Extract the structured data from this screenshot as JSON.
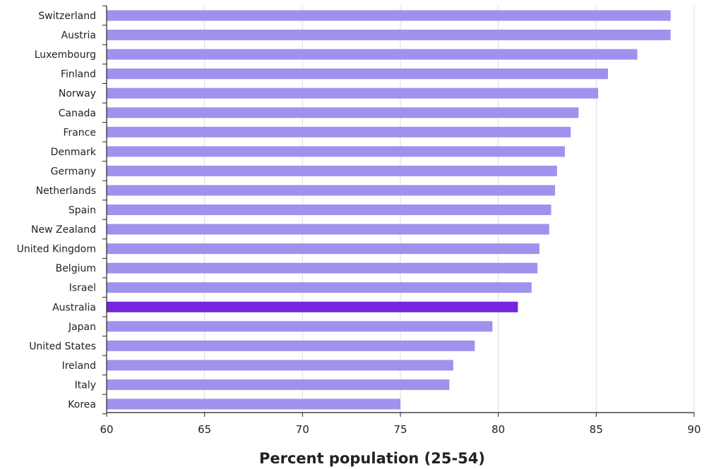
{
  "chart_data": {
    "type": "bar",
    "orientation": "horizontal",
    "xlabel": "Percent population (25-54)",
    "ylabel": "",
    "title": "",
    "xlim": [
      60,
      90
    ],
    "xticks": [
      "60",
      "65",
      "70",
      "75",
      "80",
      "85",
      "90"
    ],
    "grid": "vertical",
    "colors": {
      "bar": "#9f92ee",
      "highlight": "#7526dd",
      "grid": "#dddddd",
      "axis": "#222222"
    },
    "categories": [
      "Switzerland",
      "Austria",
      "Luxembourg",
      "Finland",
      "Norway",
      "Canada",
      "France",
      "Denmark",
      "Germany",
      "Netherlands",
      "Spain",
      "New Zealand",
      "United Kingdom",
      "Belgium",
      "Israel",
      "Australia",
      "Japan",
      "United States",
      "Ireland",
      "Italy",
      "Korea"
    ],
    "values": [
      88.8,
      88.8,
      87.1,
      85.6,
      85.1,
      84.1,
      83.7,
      83.4,
      83.0,
      82.9,
      82.7,
      82.6,
      82.1,
      82.0,
      81.7,
      81.0,
      79.7,
      78.8,
      77.7,
      77.5,
      75.0
    ],
    "highlight": "Australia"
  }
}
